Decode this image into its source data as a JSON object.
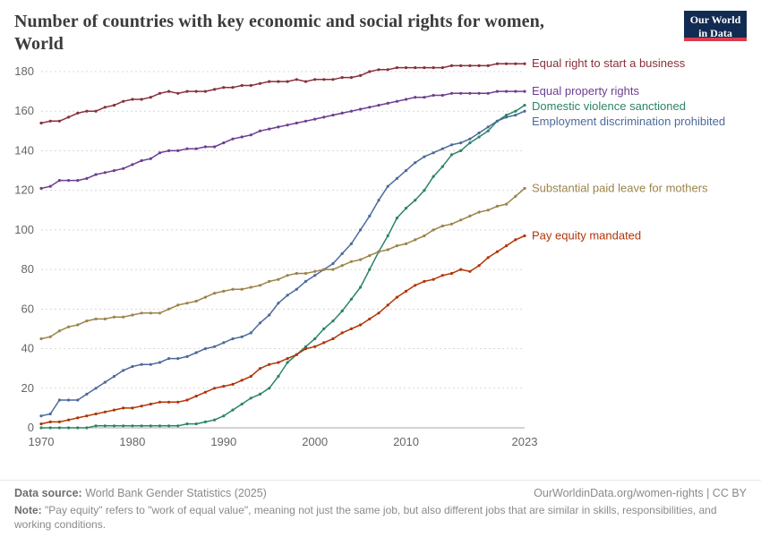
{
  "header": {
    "title": "Number of countries with key economic and social rights for women, World",
    "logo": {
      "line1": "Our World",
      "line2": "in Data",
      "bg": "#122b52",
      "accent": "#d73c50"
    }
  },
  "chart_data": {
    "type": "line",
    "title": "Number of countries with key economic and social rights for women, World",
    "xlabel": "",
    "ylabel": "",
    "x": [
      1970,
      1971,
      1972,
      1973,
      1974,
      1975,
      1976,
      1977,
      1978,
      1979,
      1980,
      1981,
      1982,
      1983,
      1984,
      1985,
      1986,
      1987,
      1988,
      1989,
      1990,
      1991,
      1992,
      1993,
      1994,
      1995,
      1996,
      1997,
      1998,
      1999,
      2000,
      2001,
      2002,
      2003,
      2004,
      2005,
      2006,
      2007,
      2008,
      2009,
      2010,
      2011,
      2012,
      2013,
      2014,
      2015,
      2016,
      2017,
      2018,
      2019,
      2020,
      2021,
      2022,
      2023
    ],
    "series": [
      {
        "name": "Equal right to start a business",
        "color": "#883039",
        "values": [
          154,
          155,
          155,
          157,
          159,
          160,
          160,
          162,
          163,
          165,
          166,
          166,
          167,
          169,
          170,
          169,
          170,
          170,
          170,
          171,
          172,
          172,
          173,
          173,
          174,
          175,
          175,
          175,
          176,
          175,
          176,
          176,
          176,
          177,
          177,
          178,
          180,
          181,
          181,
          182,
          182,
          182,
          182,
          182,
          182,
          183,
          183,
          183,
          183,
          183,
          184,
          184,
          184,
          184
        ]
      },
      {
        "name": "Equal property rights",
        "color": "#6d3e91",
        "values": [
          121,
          122,
          125,
          125,
          125,
          126,
          128,
          129,
          130,
          131,
          133,
          135,
          136,
          139,
          140,
          140,
          141,
          141,
          142,
          142,
          144,
          146,
          147,
          148,
          150,
          151,
          152,
          153,
          154,
          155,
          156,
          157,
          158,
          159,
          160,
          161,
          162,
          163,
          164,
          165,
          166,
          167,
          167,
          168,
          168,
          169,
          169,
          169,
          169,
          169,
          170,
          170,
          170,
          170
        ]
      },
      {
        "name": "Domestic violence sanctioned",
        "color": "#2c8465",
        "values": [
          0,
          0,
          0,
          0,
          0,
          0,
          1,
          1,
          1,
          1,
          1,
          1,
          1,
          1,
          1,
          1,
          2,
          2,
          3,
          4,
          6,
          9,
          12,
          15,
          17,
          20,
          26,
          33,
          37,
          41,
          45,
          50,
          54,
          59,
          65,
          71,
          80,
          89,
          97,
          106,
          111,
          115,
          120,
          127,
          132,
          138,
          140,
          144,
          147,
          150,
          155,
          158,
          160,
          163
        ]
      },
      {
        "name": "Employment discrimination prohibited",
        "color": "#4c6a9c",
        "values": [
          6,
          7,
          14,
          14,
          14,
          17,
          20,
          23,
          26,
          29,
          31,
          32,
          32,
          33,
          35,
          35,
          36,
          38,
          40,
          41,
          43,
          45,
          46,
          48,
          53,
          57,
          63,
          67,
          70,
          74,
          77,
          80,
          83,
          88,
          93,
          100,
          107,
          115,
          122,
          126,
          130,
          134,
          137,
          139,
          141,
          143,
          144,
          146,
          149,
          152,
          155,
          157,
          158,
          160
        ]
      },
      {
        "name": "Substantial paid leave for mothers",
        "color": "#9b8449",
        "values": [
          45,
          46,
          49,
          51,
          52,
          54,
          55,
          55,
          56,
          56,
          57,
          58,
          58,
          58,
          60,
          62,
          63,
          64,
          66,
          68,
          69,
          70,
          70,
          71,
          72,
          74,
          75,
          77,
          78,
          78,
          79,
          80,
          80,
          82,
          84,
          85,
          87,
          89,
          90,
          92,
          93,
          95,
          97,
          100,
          102,
          103,
          105,
          107,
          109,
          110,
          112,
          113,
          117,
          121
        ]
      },
      {
        "name": "Pay equity mandated",
        "color": "#b13507",
        "values": [
          2,
          3,
          3,
          4,
          5,
          6,
          7,
          8,
          9,
          10,
          10,
          11,
          12,
          13,
          13,
          13,
          14,
          16,
          18,
          20,
          21,
          22,
          24,
          26,
          30,
          32,
          33,
          35,
          37,
          40,
          41,
          43,
          45,
          48,
          50,
          52,
          55,
          58,
          62,
          66,
          69,
          72,
          74,
          75,
          77,
          78,
          80,
          79,
          82,
          86,
          89,
          92,
          95,
          97
        ]
      }
    ],
    "xticks": [
      1970,
      1980,
      1990,
      2000,
      2010,
      2023
    ],
    "yticks": [
      0,
      20,
      40,
      60,
      80,
      100,
      120,
      140,
      160,
      180
    ],
    "ylim": [
      0,
      190
    ],
    "grid": true,
    "legend_position": "right"
  },
  "footer": {
    "source_label": "Data source:",
    "source_text": " World Bank Gender Statistics (2025)",
    "link_text": "OurWorldinData.org/women-rights",
    "license": " | CC BY",
    "note_label": "Note:",
    "note_text": " \"Pay equity\" refers to \"work of equal value\", meaning not just the same job, but also different jobs that are similar in skills, responsibilities, and working conditions."
  }
}
